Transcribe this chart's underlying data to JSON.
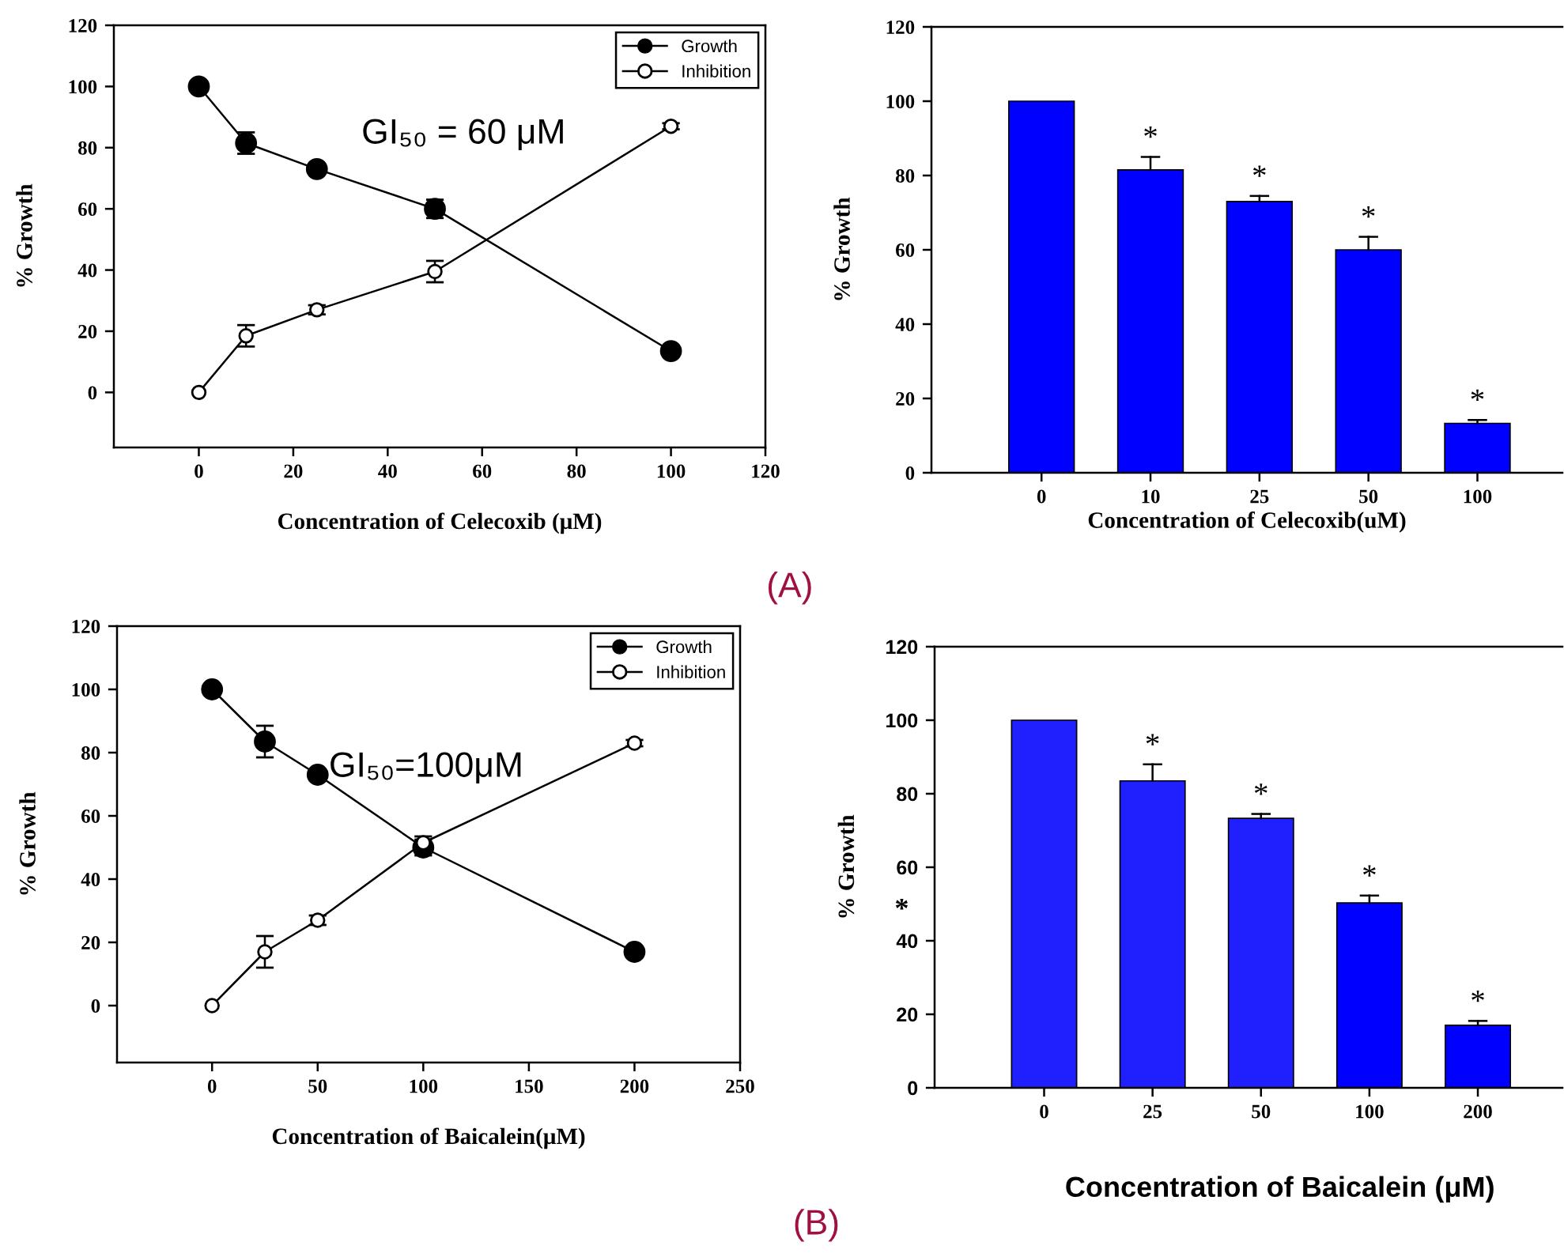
{
  "chart_data": [
    {
      "type": "line",
      "xlabel": "Concentration of Celecoxib (μM)",
      "ylabel": "% Growth",
      "x": [
        0,
        10,
        25,
        50,
        100
      ],
      "xlim": [
        -18,
        120
      ],
      "ylim": [
        -18,
        120
      ],
      "xticks": [
        0,
        20,
        40,
        60,
        80,
        100,
        120
      ],
      "yticks": [
        0,
        20,
        40,
        60,
        80,
        100,
        120
      ],
      "marker": "circle",
      "line_style": "solid",
      "legend": "top right",
      "grid": false,
      "series": [
        {
          "name": "Growth",
          "color": "#000000",
          "values": [
            100,
            81.5,
            73,
            60,
            13.5
          ],
          "errors": [
            null,
            3.5,
            1,
            3,
            1
          ]
        },
        {
          "name": "Inhibition",
          "color": "#ffffff",
          "values": [
            0,
            18.5,
            27,
            39.5,
            87
          ],
          "errors": [
            null,
            3.5,
            1.5,
            3.5,
            1
          ]
        }
      ],
      "annotations": [
        "GI₅₀ = 60 μM"
      ]
    },
    {
      "type": "bar",
      "xlabel": "Concentration of Celecoxib(uM)",
      "ylabel": "% Growth",
      "categories": [
        "0",
        "10",
        "25",
        "50",
        "100"
      ],
      "ylim": [
        0,
        120
      ],
      "yticks": [
        0,
        20,
        40,
        60,
        80,
        100,
        120
      ],
      "grid": false,
      "values": [
        100,
        81.5,
        73,
        60,
        13.3
      ],
      "color": "#0000ff",
      "errors": [
        null,
        [
          81.5,
          85
        ],
        [
          73,
          74.5
        ],
        [
          60,
          63.5
        ],
        [
          13.3,
          14.2
        ]
      ],
      "annotations": [
        {
          "text": "*",
          "x": "10",
          "y": 85
        },
        {
          "text": "*",
          "x": "25",
          "y": 74.5
        },
        {
          "text": "*",
          "x": "50",
          "y": 63.5
        },
        {
          "text": "*",
          "x": "100",
          "y": 14.2
        },
        "(A)"
      ]
    },
    {
      "type": "line",
      "xlabel": "Concentration of Baicalein(μM)",
      "ylabel": "% Growth",
      "x": [
        0,
        25,
        50,
        100,
        200
      ],
      "xlim": [
        -45,
        250
      ],
      "ylim": [
        -18,
        120
      ],
      "xticks": [
        0,
        50,
        100,
        150,
        200,
        250
      ],
      "yticks": [
        0,
        20,
        40,
        60,
        80,
        100,
        120
      ],
      "marker": "circle",
      "line_style": "solid",
      "legend": "top right",
      "grid": false,
      "series": [
        {
          "name": "Growth",
          "color": "#000000",
          "values": [
            100,
            83.5,
            73,
            50,
            17
          ],
          "errors": [
            null,
            5,
            1,
            2.5,
            1
          ]
        },
        {
          "name": "Inhibition",
          "color": "#ffffff",
          "values": [
            0,
            17,
            27,
            51.5,
            83
          ],
          "errors": [
            null,
            5,
            1.5,
            2,
            1
          ]
        }
      ],
      "annotations": [
        "GI₅₀=100μM"
      ]
    },
    {
      "type": "bar",
      "xlabel": "Concentration of Baicalein (μM)",
      "ylabel": "% Growth",
      "categories": [
        "0",
        "25",
        "50",
        "100",
        "200"
      ],
      "ylim": [
        0,
        120
      ],
      "yticks": [
        0,
        20,
        40,
        60,
        80,
        100,
        120
      ],
      "grid": false,
      "values": [
        100,
        83.5,
        73.3,
        50.3,
        17
      ],
      "colors": [
        "#2020ff",
        "#2020ff",
        "#2020ff",
        "#0000ff",
        "#0000ff"
      ],
      "errors": [
        null,
        [
          83.5,
          88
        ],
        [
          73.3,
          74.5
        ],
        [
          50.3,
          52.3
        ],
        [
          17,
          18.2
        ]
      ],
      "annotations": [
        {
          "text": "*",
          "x": "25",
          "y": 88
        },
        {
          "text": "*",
          "x": "50",
          "y": 74.5
        },
        {
          "text": "*",
          "x": "100",
          "y": 52.3
        },
        {
          "text": "*",
          "x": "200",
          "y": 18.2
        },
        "*",
        "(B)"
      ]
    }
  ]
}
